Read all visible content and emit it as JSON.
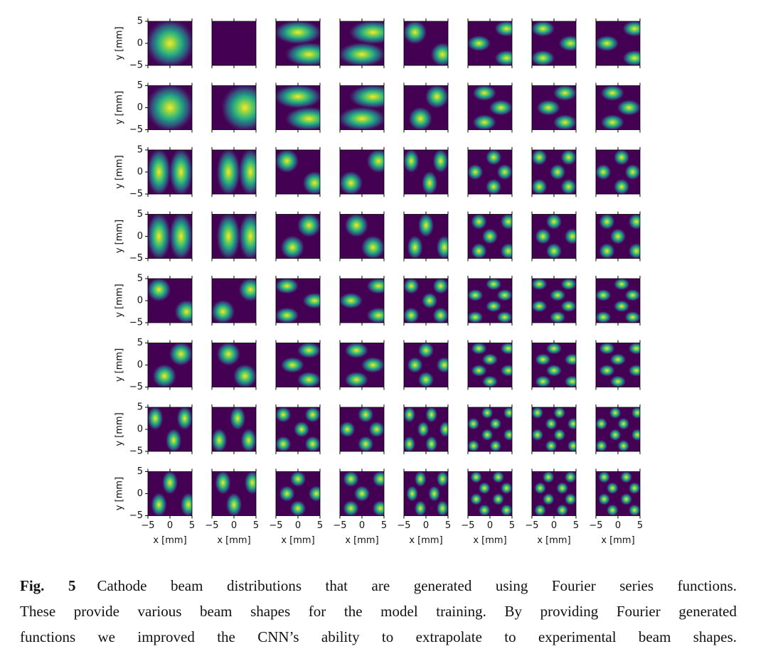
{
  "figure": {
    "rows": 8,
    "cols": 8,
    "y_label": "y [mm]",
    "x_label": "x [mm]",
    "lim": [
      -5,
      5
    ],
    "ticks": [
      {
        "value": -5,
        "label": "−5"
      },
      0,
      5
    ],
    "caption": {
      "label": "Fig. 5",
      "lines": [
        "Cathode beam distributions that are generated using Fourier series functions.",
        "These provide various beam shapes for the model training. By providing Fourier generated",
        "functions we improved the CNN’s ability to extrapolate to experimental beam shapes."
      ]
    }
  }
}
